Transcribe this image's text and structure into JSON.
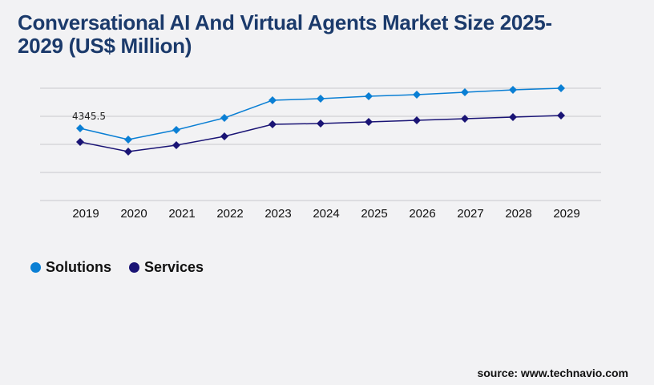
{
  "chart_data": {
    "type": "line",
    "title": "Conversational AI And Virtual Agents Market Size 2025-2029 (US$ Million)",
    "categories": [
      "2019",
      "2020",
      "2021",
      "2022",
      "2023",
      "2024",
      "2025",
      "2026",
      "2027",
      "2028",
      "2029"
    ],
    "series": [
      {
        "name": "Solutions",
        "color": "#0a7fd4",
        "values": [
          4345.5,
          3669,
          4249,
          4973,
          6035,
          6132,
          6277,
          6373,
          6518,
          6663,
          6760
        ]
      },
      {
        "name": "Services",
        "color": "#1a1475",
        "values": [
          3525,
          2945,
          3332,
          3862,
          4587,
          4635,
          4732,
          4828,
          4925,
          5021,
          5118
        ]
      }
    ],
    "data_labels": [
      {
        "series": "Solutions",
        "category": "2019",
        "text": "4345.5"
      }
    ],
    "ylim": [
      0,
      6760
    ],
    "grid": true,
    "legend": "bottom-left",
    "xlabel": "",
    "ylabel": ""
  },
  "source": "source: www.technavio.com"
}
